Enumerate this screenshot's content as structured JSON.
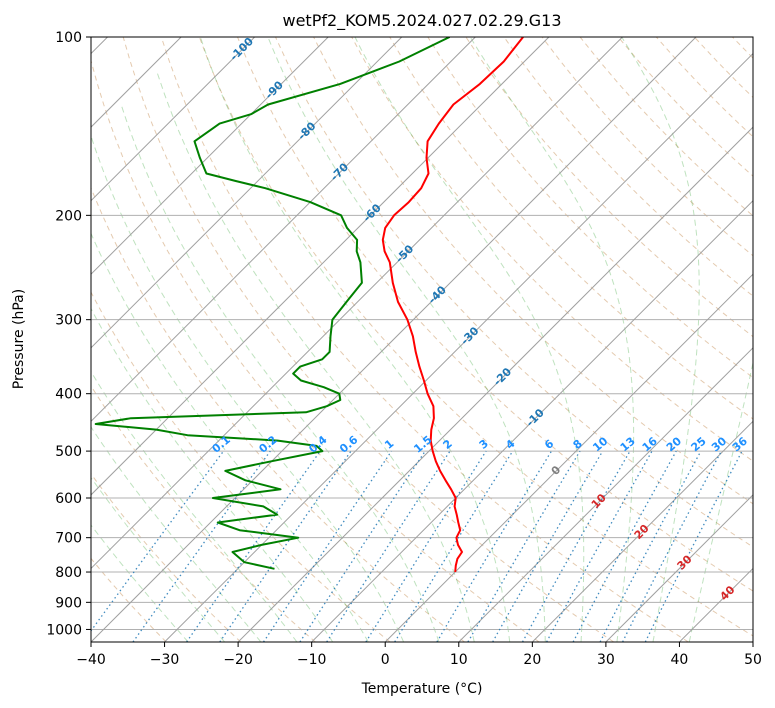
{
  "chart_data": {
    "type": "line",
    "title": "wetPf2_KOM5.2024.027.02.29.G13",
    "xlabel": "Temperature (°C)",
    "ylabel": "Pressure (hPa)",
    "xlim": [
      -40,
      50
    ],
    "ylim": [
      1050,
      100
    ],
    "y_scale": "log",
    "grid": true,
    "x_ticks": [
      -40,
      -30,
      -20,
      -10,
      0,
      10,
      20,
      30,
      40,
      50
    ],
    "y_ticks": [
      100,
      200,
      300,
      400,
      500,
      600,
      700,
      800,
      900,
      1000
    ],
    "x_tick_labels": [
      "−40",
      "−30",
      "−20",
      "−10",
      "0",
      "10",
      "20",
      "30",
      "40",
      "50"
    ],
    "y_tick_labels": [
      "100",
      "200",
      "300",
      "400",
      "500",
      "600",
      "700",
      "800",
      "900",
      "1000"
    ],
    "isotherm_labels": [
      "-100",
      "-90",
      "-80",
      "-70",
      "-60",
      "-50",
      "-40",
      "-30",
      "-20",
      "-10",
      "0",
      "10",
      "20",
      "30",
      "40"
    ],
    "mixing_ratio_labels": [
      "0.1",
      "0.2",
      "0.4",
      "0.6",
      "1",
      "1.5",
      "2",
      "3",
      "4",
      "6",
      "8",
      "10",
      "13",
      "16",
      "20",
      "25",
      "30",
      "36"
    ],
    "series": [
      {
        "color": "#ff0000",
        "pressure": [
          800,
          780,
          760,
          740,
          720,
          700,
          680,
          660,
          640,
          620,
          600,
          580,
          560,
          540,
          520,
          500,
          480,
          460,
          440,
          420,
          400,
          380,
          360,
          340,
          320,
          300,
          280,
          260,
          240,
          230,
          220,
          210,
          200,
          190,
          180,
          170,
          160,
          150,
          140,
          130,
          120,
          110,
          100
        ],
        "temperature": [
          0,
          -0.8,
          -1.5,
          -1.8,
          -3.3,
          -4.5,
          -5.0,
          -6.3,
          -7.6,
          -9.0,
          -10.0,
          -11.8,
          -13.8,
          -15.8,
          -17.7,
          -19.5,
          -21.2,
          -22.6,
          -23.8,
          -25.5,
          -28.0,
          -30.3,
          -32.8,
          -35.3,
          -37.8,
          -40.8,
          -44.5,
          -47.8,
          -51.0,
          -53.2,
          -55.0,
          -56.3,
          -56.8,
          -56.6,
          -56.8,
          -57.8,
          -60.2,
          -62.3,
          -63.2,
          -63.8,
          -63.0,
          -62.8,
          -63.5
        ]
      },
      {
        "color": "#008000",
        "pressure": [
          790,
          770,
          740,
          720,
          700,
          680,
          660,
          640,
          620,
          600,
          580,
          560,
          540,
          520,
          500,
          490,
          480,
          470,
          460,
          450,
          440,
          430,
          420,
          410,
          400,
          390,
          380,
          370,
          360,
          350,
          340,
          320,
          300,
          280,
          260,
          240,
          230,
          220,
          210,
          200,
          190,
          180,
          175,
          170,
          160,
          150,
          140,
          135,
          130,
          120,
          110,
          100
        ],
        "temperature": [
          -25.0,
          -30.0,
          -33.0,
          -30.0,
          -26.0,
          -35.0,
          -39.0,
          -32.0,
          -35.0,
          -43.0,
          -35.0,
          -41.0,
          -45.0,
          -40.0,
          -34.5,
          -36.0,
          -42.0,
          -55.0,
          -60.0,
          -69.0,
          -65.0,
          -42.0,
          -40.0,
          -39.0,
          -40.0,
          -43.0,
          -47.0,
          -49.0,
          -49.0,
          -47.0,
          -47.0,
          -49.0,
          -51.0,
          -51.5,
          -52.0,
          -55.0,
          -57.0,
          -58.5,
          -61.5,
          -64.0,
          -70.0,
          -78.0,
          -83.0,
          -88.0,
          -91.0,
          -94.0,
          -93.0,
          -90.0,
          -89.0,
          -82.0,
          -77.0,
          -73.5
        ]
      }
    ]
  }
}
